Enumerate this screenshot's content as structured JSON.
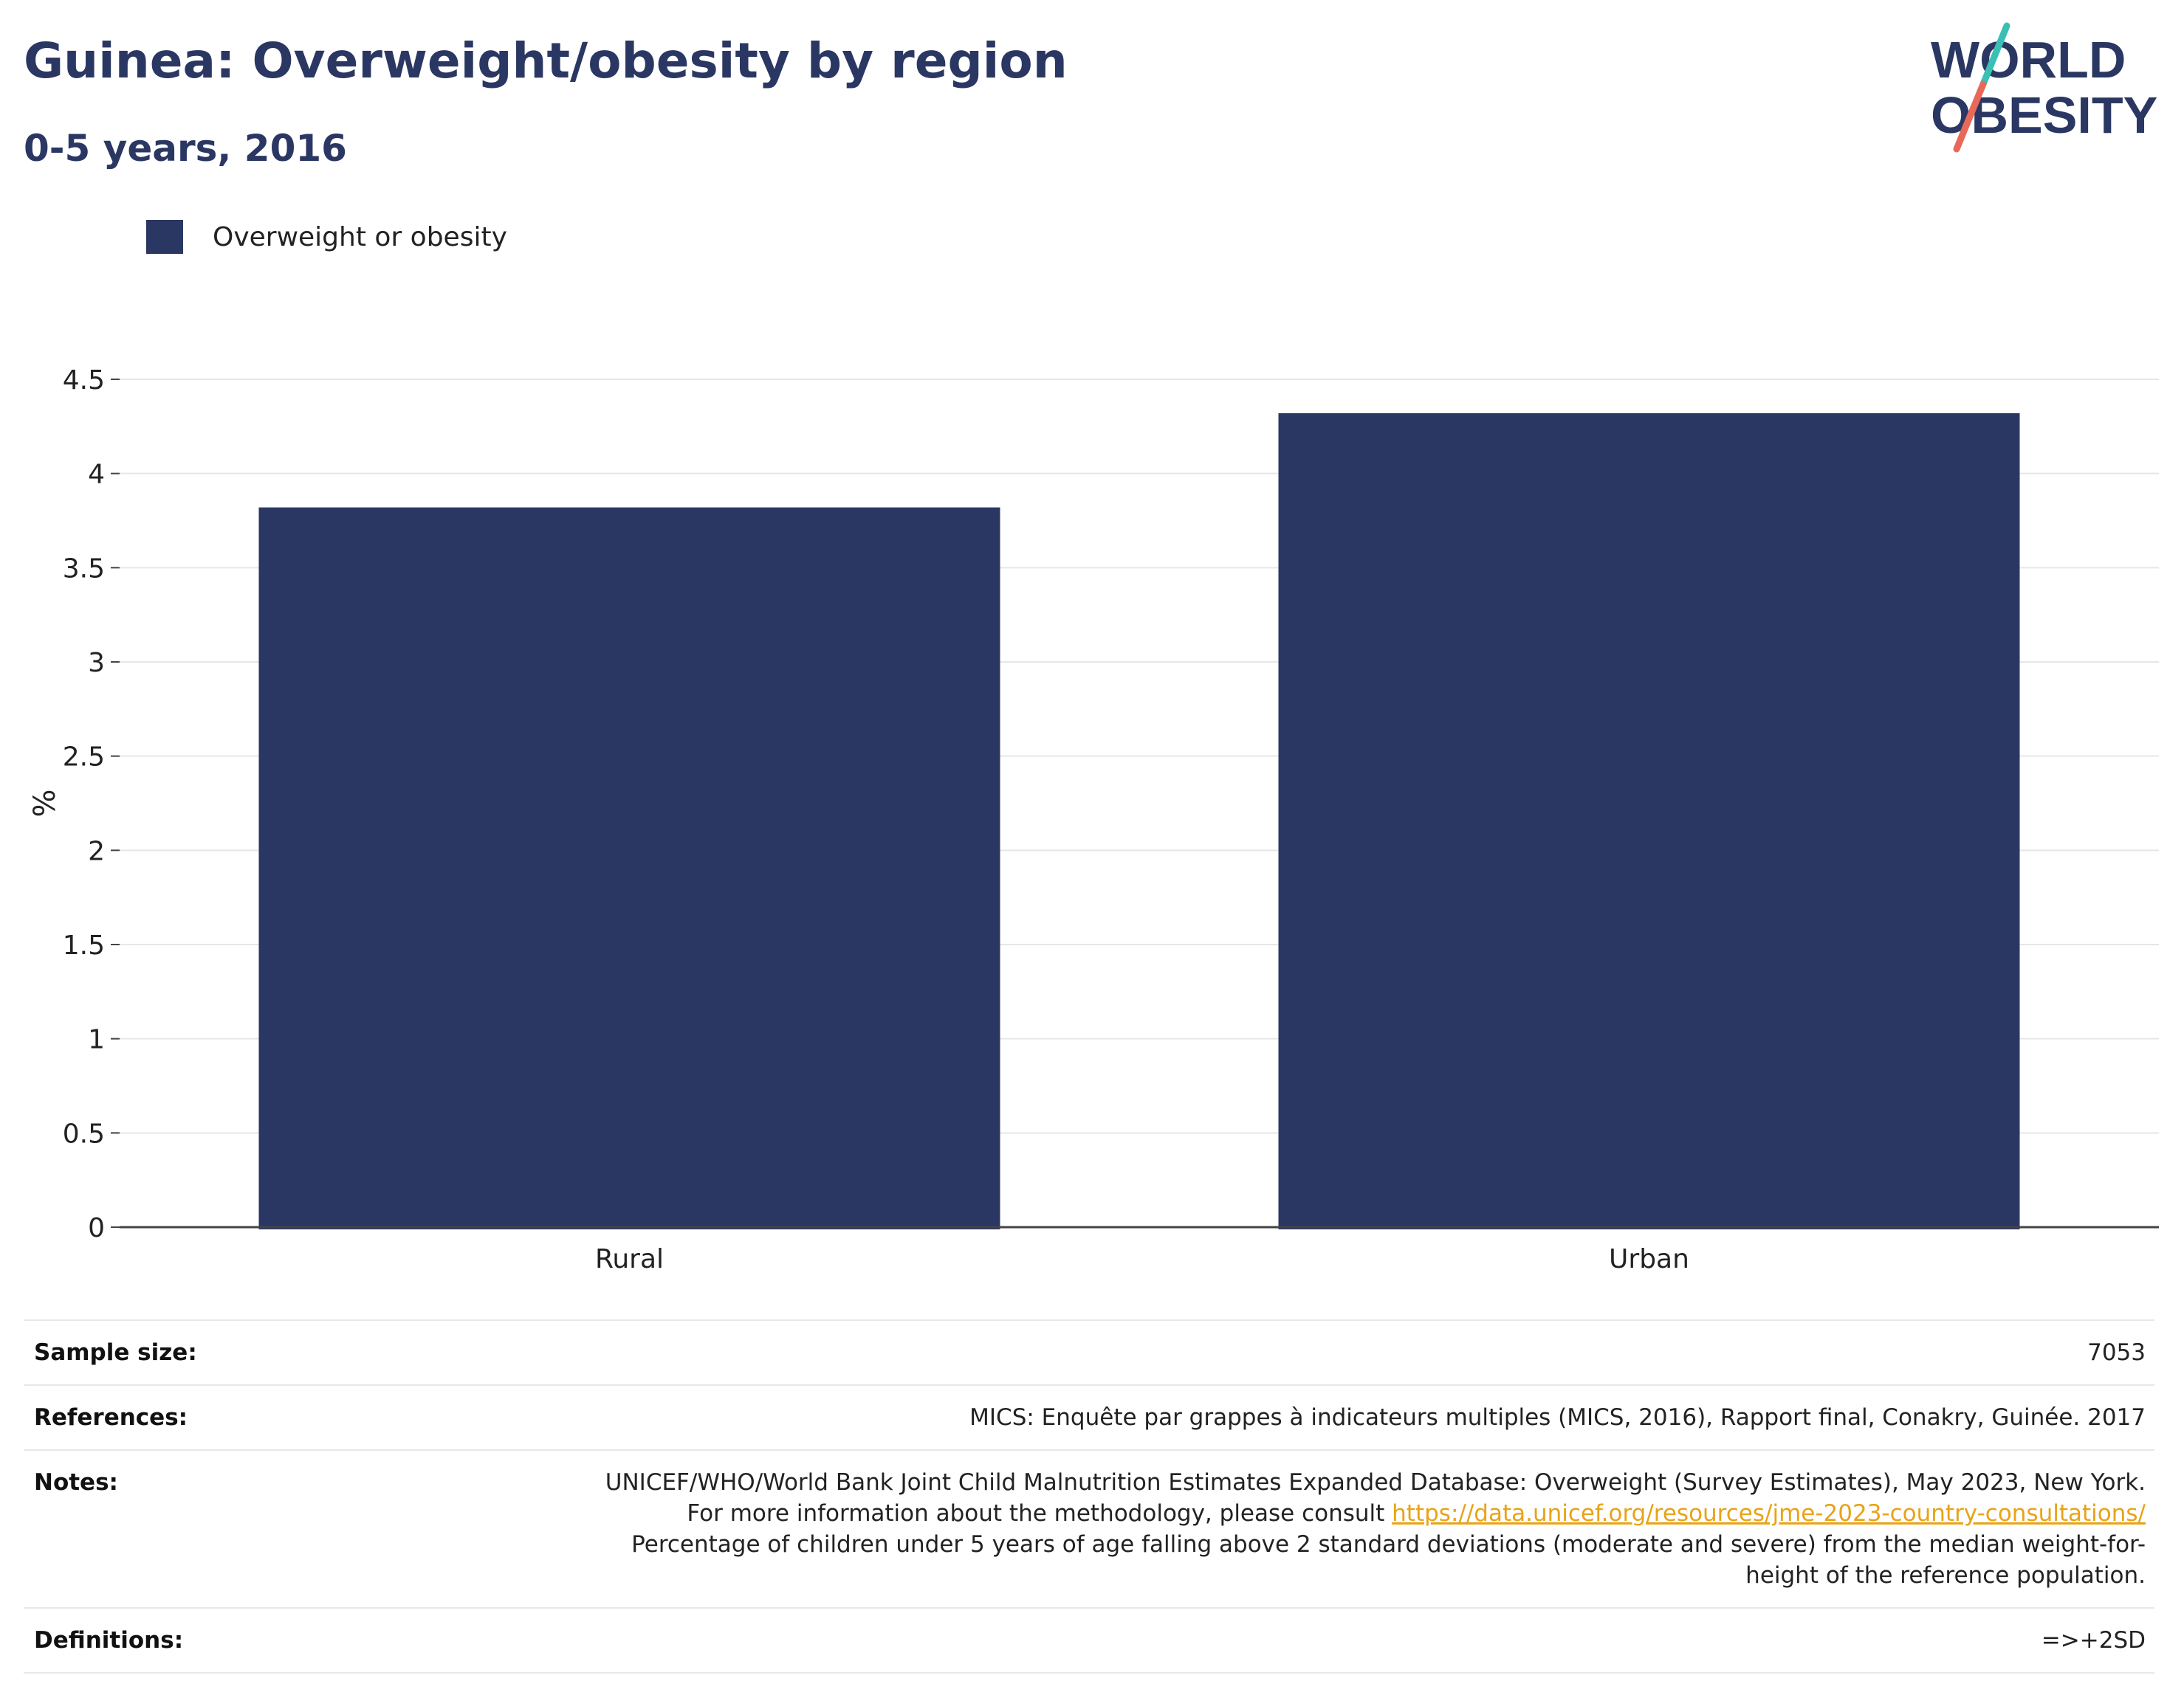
{
  "title": "Guinea: Overweight/obesity by region",
  "subtitle": "0-5 years, 2016",
  "logo": {
    "line1": "WORLD",
    "line2": "OBESITY",
    "colors": {
      "text": "#2b3763",
      "slash_top": "#3bbfb5",
      "slash_bottom": "#e8695a"
    }
  },
  "legend": {
    "label": "Overweight or obesity",
    "color": "#2b3763"
  },
  "chart_data": {
    "type": "bar",
    "categories": [
      "Rural",
      "Urban"
    ],
    "series": [
      {
        "name": "Overweight or obesity",
        "values": [
          3.82,
          4.32
        ]
      }
    ],
    "xlabel": "",
    "ylabel": "%",
    "ylim": [
      0,
      4.5
    ],
    "yticks": [
      "0",
      "0.5",
      "1",
      "1.5",
      "2",
      "2.5",
      "3",
      "3.5",
      "4",
      "4.5"
    ],
    "grid": true,
    "legend_position": "top-left",
    "bar_color": "#2b3763"
  },
  "meta": {
    "sample_size": {
      "label": "Sample size:",
      "value": "7053"
    },
    "references": {
      "label": "References:",
      "value": "MICS: Enquête par grappes à indicateurs multiples (MICS, 2016), Rapport final, Conakry, Guinée. 2017"
    },
    "notes": {
      "label": "Notes:",
      "text_before": "UNICEF/WHO/World Bank Joint Child Malnutrition Estimates Expanded Database: Overweight (Survey Estimates), May 2023, New York. For more information about the methodology, please consult ",
      "link": "https://data.unicef.org/resources/jme-2023-country-consultations/",
      "text_after": "Percentage of children under 5 years of age falling above 2 standard deviations (moderate and severe) from the median weight-for-height of the reference population."
    },
    "definitions": {
      "label": "Definitions:",
      "value": "=>+2SD"
    }
  }
}
